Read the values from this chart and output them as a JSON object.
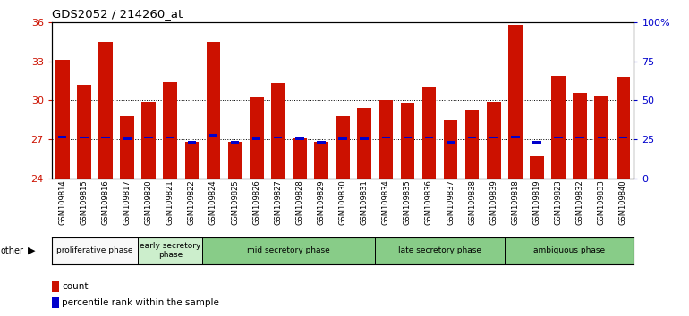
{
  "title": "GDS2052 / 214260_at",
  "samples": [
    "GSM109814",
    "GSM109815",
    "GSM109816",
    "GSM109817",
    "GSM109820",
    "GSM109821",
    "GSM109822",
    "GSM109824",
    "GSM109825",
    "GSM109826",
    "GSM109827",
    "GSM109828",
    "GSM109829",
    "GSM109830",
    "GSM109831",
    "GSM109834",
    "GSM109835",
    "GSM109836",
    "GSM109837",
    "GSM109838",
    "GSM109839",
    "GSM109818",
    "GSM109819",
    "GSM109823",
    "GSM109832",
    "GSM109833",
    "GSM109840"
  ],
  "count_values": [
    33.1,
    31.2,
    34.5,
    28.8,
    29.9,
    31.4,
    26.8,
    34.5,
    26.8,
    30.2,
    31.3,
    27.1,
    26.8,
    28.8,
    29.4,
    30.0,
    29.8,
    31.0,
    28.5,
    29.3,
    29.9,
    35.8,
    25.7,
    31.9,
    30.6,
    30.4,
    31.8
  ],
  "percentile_values": [
    27.2,
    27.15,
    27.15,
    27.02,
    27.15,
    27.15,
    26.75,
    27.3,
    26.75,
    27.02,
    27.15,
    27.02,
    26.75,
    27.02,
    27.02,
    27.15,
    27.15,
    27.15,
    26.75,
    27.15,
    27.15,
    27.2,
    26.75,
    27.15,
    27.15,
    27.15,
    27.15
  ],
  "ylim_left": [
    24,
    36
  ],
  "ylim_right": [
    0,
    100
  ],
  "yticks_left": [
    24,
    27,
    30,
    33,
    36
  ],
  "yticks_right": [
    0,
    25,
    50,
    75,
    100
  ],
  "ytick_labels_right": [
    "0",
    "25",
    "50",
    "75",
    "100%"
  ],
  "bar_color": "#cc1100",
  "percentile_color": "#0000cc",
  "bar_width": 0.65,
  "phases": [
    {
      "label": "proliferative phase",
      "start": 0,
      "end": 4,
      "color": "#f8f8f8"
    },
    {
      "label": "early secretory\nphase",
      "start": 4,
      "end": 7,
      "color": "#cceecc"
    },
    {
      "label": "mid secretory phase",
      "start": 7,
      "end": 15,
      "color": "#88cc88"
    },
    {
      "label": "late secretory phase",
      "start": 15,
      "end": 21,
      "color": "#88cc88"
    },
    {
      "label": "ambiguous phase",
      "start": 21,
      "end": 27,
      "color": "#88cc88"
    }
  ],
  "legend_count_label": "count",
  "legend_pct_label": "percentile rank within the sample"
}
